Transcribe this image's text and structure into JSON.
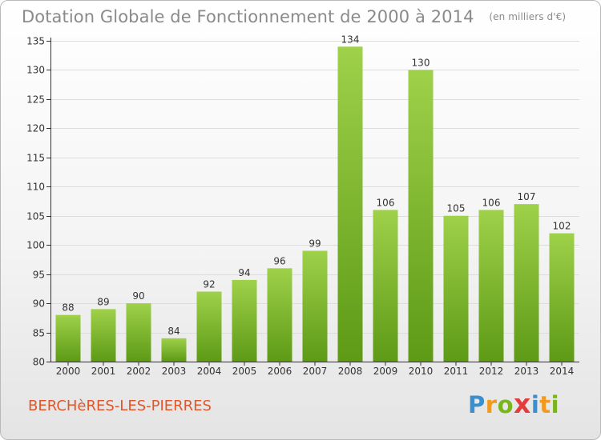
{
  "title": "Dotation Globale de Fonctionnement de 2000 à 2014",
  "subtitle": "(en milliers d'€)",
  "location": "BERCHèRES-LES-PIERRES",
  "logo": {
    "letters": [
      {
        "ch": "P",
        "color": "#3a8fd0"
      },
      {
        "ch": "r",
        "color": "#f29a1d"
      },
      {
        "ch": "o",
        "color": "#7ab51d"
      },
      {
        "ch": "x",
        "color": "#e23c3c"
      },
      {
        "ch": "i",
        "color": "#3a8fd0"
      },
      {
        "ch": "t",
        "color": "#f29a1d"
      },
      {
        "ch": "i",
        "color": "#7ab51d"
      }
    ]
  },
  "colors": {
    "bar_light": "#9fd14a",
    "bar_dark": "#5d9a16",
    "axis": "#333333",
    "grid": "#dddddd",
    "text": "#333333"
  },
  "chart_data": {
    "type": "bar",
    "categories": [
      "2000",
      "2001",
      "2002",
      "2003",
      "2004",
      "2005",
      "2006",
      "2007",
      "2008",
      "2009",
      "2010",
      "2011",
      "2012",
      "2013",
      "2014"
    ],
    "values": [
      88,
      89,
      90,
      84,
      92,
      94,
      96,
      99,
      134,
      106,
      130,
      105,
      106,
      107,
      102
    ],
    "ylim": [
      80,
      135
    ],
    "yticks": [
      80,
      85,
      90,
      95,
      100,
      105,
      110,
      115,
      120,
      125,
      130,
      135
    ],
    "grid": true
  }
}
